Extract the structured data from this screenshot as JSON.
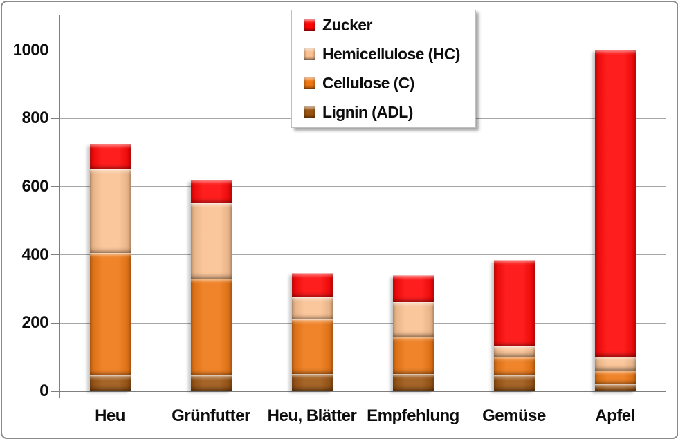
{
  "chart_data": {
    "type": "bar",
    "stacked": true,
    "title": "",
    "xlabel": "",
    "ylabel": "",
    "categories": [
      "Heu",
      "Grünfutter",
      "Heu, Blätter",
      "Empfehlung",
      "Gemüse",
      "Apfel"
    ],
    "series": [
      {
        "name": "Lignin (ADL)",
        "color": "#9B5310",
        "values": [
          45,
          45,
          50,
          50,
          45,
          20
        ]
      },
      {
        "name": "Cellulose (C)",
        "color": "#ED7612",
        "values": [
          360,
          285,
          160,
          110,
          55,
          40
        ]
      },
      {
        "name": "Hemicellulose (HC)",
        "color": "#FAC090",
        "values": [
          245,
          220,
          65,
          100,
          30,
          40
        ]
      },
      {
        "name": "Zucker",
        "color": "#FE0505",
        "values": [
          75,
          70,
          70,
          80,
          255,
          900
        ]
      }
    ],
    "totals": [
      725,
      620,
      345,
      340,
      385,
      1000
    ],
    "ylim": [
      0,
      1000
    ],
    "yticks": [
      0,
      200,
      400,
      600,
      800,
      1000
    ],
    "ytick_labels": [
      "0",
      "200",
      "400",
      "600",
      "800",
      "1000"
    ],
    "grid": true,
    "legend_position": "top-center",
    "legend_order": [
      "Zucker",
      "Hemicellulose (HC)",
      "Cellulose (C)",
      "Lignin (ADL)"
    ]
  },
  "style": {
    "gridline_color": "#a6a6a6",
    "axis_color": "#7f7f7f",
    "frame_border_color": "#8a8a8a",
    "text_color": "#0d0d0d",
    "legend_border_color": "#bfbfbf",
    "background": "#ffffff"
  }
}
